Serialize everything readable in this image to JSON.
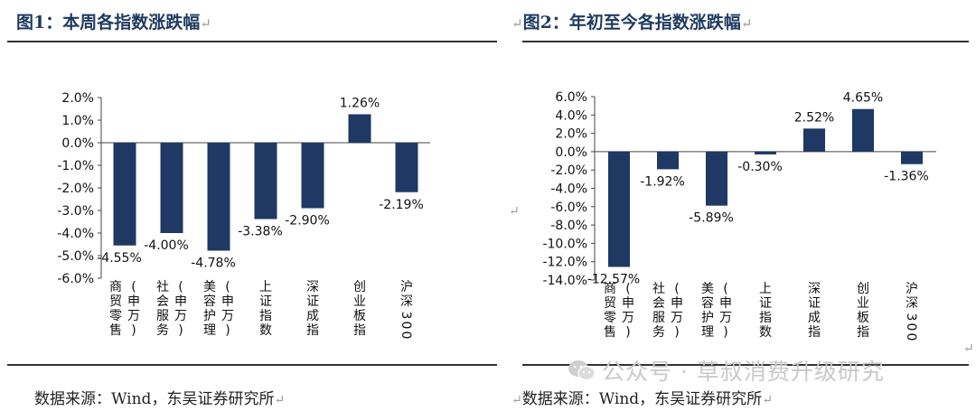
{
  "figures": [
    {
      "title": "图1：本周各指数涨跌幅",
      "mark": "↵",
      "source": "数据来源：Wind，东吴证券研究所",
      "chart_data": {
        "type": "bar",
        "title": "",
        "xlabel": "",
        "ylabel": "",
        "categories": [
          "商贸零售(申万)",
          "社会服务(申万)",
          "美容护理(申万)",
          "上证指数",
          "深证成指",
          "创业板指",
          "沪深300"
        ],
        "values": [
          -4.55,
          -4.0,
          -4.78,
          -3.38,
          -2.9,
          1.26,
          -2.19
        ],
        "value_labels": [
          "-4.55%",
          "-4.00%",
          "-4.78%",
          "-3.38%",
          "-2.90%",
          "1.26%",
          "-2.19%"
        ],
        "ylim": [
          -6.0,
          2.0
        ],
        "yticks": [
          "2.0%",
          "1.0%",
          "0.0%",
          "-1.0%",
          "-2.0%",
          "-3.0%",
          "-4.0%",
          "-5.0%",
          "-6.0%"
        ],
        "grid": false,
        "bar_color": "#1f3864"
      }
    },
    {
      "title": "图2：年初至今各指数涨跌幅",
      "mark": "↵",
      "source": "数据来源：Wind，东吴证券研究所",
      "chart_data": {
        "type": "bar",
        "title": "",
        "xlabel": "",
        "ylabel": "",
        "categories": [
          "商贸零售(申万)",
          "社会服务(申万)",
          "美容护理(申万)",
          "上证指数",
          "深证成指",
          "创业板指",
          "沪深300"
        ],
        "values": [
          -12.57,
          -1.92,
          -5.89,
          -0.3,
          2.52,
          4.65,
          -1.36
        ],
        "value_labels": [
          "-12.57%",
          "-1.92%",
          "-5.89%",
          "-0.30%",
          "2.52%",
          "4.65%",
          "-1.36%"
        ],
        "ylim": [
          -14.0,
          6.0
        ],
        "yticks": [
          "6.0%",
          "4.0%",
          "2.0%",
          "0.0%",
          "-2.0%",
          "-4.0%",
          "-6.0%",
          "-8.0%",
          "-10.0%",
          "-12.0%",
          "-14.0%"
        ],
        "grid": false,
        "bar_color": "#1f3864"
      }
    }
  ],
  "watermark": "公众号 · 草叔消费升级研究",
  "watermark_icon": "wechat-icon",
  "stray_mark": "↵"
}
